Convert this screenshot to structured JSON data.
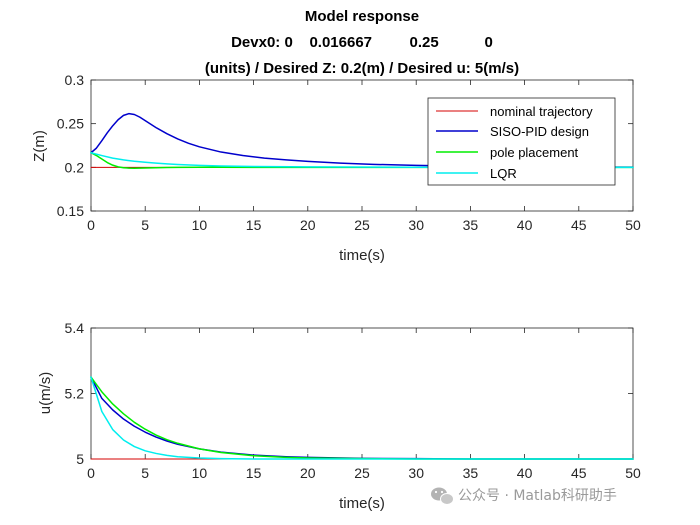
{
  "figure": {
    "title_lines": [
      "Model response",
      "Devx0: 0    0.016667         0.25           0",
      "(units) / Desired Z: 0.2(m) / Desired u: 5(m/s)"
    ]
  },
  "watermark": {
    "text": "公众号 · Matlab科研助手",
    "icon": "wechat-icon"
  },
  "colors": {
    "nominal": "#d40000",
    "pid": "#0000cc",
    "pole": "#00ee00",
    "lqr": "#00eeee"
  },
  "chart_data": [
    {
      "type": "line",
      "xlabel": "time(s)",
      "ylabel": "Z(m)",
      "xlim": [
        0,
        50
      ],
      "ylim": [
        0.15,
        0.3
      ],
      "xticks": [
        0,
        5,
        10,
        15,
        20,
        25,
        30,
        35,
        40,
        45,
        50
      ],
      "yticks": [
        0.15,
        0.2,
        0.25,
        0.3
      ],
      "ytick_labels": [
        "0.15",
        "0.2",
        "0.25",
        "0.3"
      ],
      "grid": false,
      "legend": "top-right",
      "series": [
        {
          "name": "nominal trajectory",
          "color": "#d40000",
          "x": [
            0,
            50
          ],
          "y": [
            0.2,
            0.2
          ]
        },
        {
          "name": "SISO-PID design",
          "color": "#0000cc",
          "x": [
            0,
            0.5,
            1,
            1.5,
            2,
            2.5,
            3,
            3.5,
            4,
            4.5,
            5,
            6,
            7,
            8,
            9,
            10,
            12,
            14,
            16,
            18,
            20,
            23,
            26,
            30,
            35,
            40,
            45,
            50
          ],
          "y": [
            0.2167,
            0.222,
            0.2305,
            0.2395,
            0.2475,
            0.2545,
            0.2595,
            0.2615,
            0.2605,
            0.2575,
            0.2535,
            0.2455,
            0.2385,
            0.2325,
            0.2275,
            0.2235,
            0.2175,
            0.2135,
            0.2105,
            0.2085,
            0.2068,
            0.2048,
            0.2034,
            0.2022,
            0.2013,
            0.2008,
            0.2004,
            0.2002
          ]
        },
        {
          "name": "pole placement",
          "color": "#00ee00",
          "x": [
            0,
            0.5,
            1,
            1.5,
            2,
            2.5,
            3,
            3.5,
            4,
            5,
            6,
            7,
            8,
            10,
            12,
            15,
            20,
            30,
            40,
            50
          ],
          "y": [
            0.2167,
            0.2135,
            0.2095,
            0.2055,
            0.2025,
            0.2005,
            0.1995,
            0.1991,
            0.199,
            0.1992,
            0.1995,
            0.1998,
            0.2,
            0.2001,
            0.2001,
            0.2,
            0.2,
            0.2,
            0.2,
            0.2
          ]
        },
        {
          "name": "LQR",
          "color": "#00eeee",
          "x": [
            0,
            1,
            2,
            3,
            4,
            5,
            6,
            7,
            8,
            10,
            12,
            15,
            20,
            30,
            40,
            50
          ],
          "y": [
            0.2167,
            0.2135,
            0.2105,
            0.2085,
            0.207,
            0.2058,
            0.2048,
            0.204,
            0.2033,
            0.2023,
            0.2016,
            0.201,
            0.2005,
            0.2001,
            0.2,
            0.2
          ]
        }
      ]
    },
    {
      "type": "line",
      "xlabel": "time(s)",
      "ylabel": "u(m/s)",
      "xlim": [
        0,
        50
      ],
      "ylim": [
        5,
        5.4
      ],
      "xticks": [
        0,
        5,
        10,
        15,
        20,
        25,
        30,
        35,
        40,
        45,
        50
      ],
      "yticks": [
        5,
        5.2,
        5.4
      ],
      "ytick_labels": [
        "5",
        "5.2",
        "5.4"
      ],
      "grid": false,
      "series": [
        {
          "name": "nominal trajectory",
          "color": "#d40000",
          "x": [
            0,
            50
          ],
          "y": [
            5,
            5
          ]
        },
        {
          "name": "SISO-PID design",
          "color": "#0000cc",
          "x": [
            0,
            1,
            2,
            3,
            4,
            5,
            6,
            7,
            8,
            10,
            12,
            15,
            18,
            20,
            25,
            30,
            35,
            40,
            50
          ],
          "y": [
            5.25,
            5.185,
            5.15,
            5.122,
            5.1,
            5.082,
            5.067,
            5.055,
            5.045,
            5.031,
            5.021,
            5.012,
            5.007,
            5.005,
            5.002,
            5.001,
            5.0,
            5.0,
            5.0
          ]
        },
        {
          "name": "pole placement",
          "color": "#00ee00",
          "x": [
            0,
            1,
            2,
            3,
            4,
            5,
            6,
            7,
            8,
            10,
            12,
            15,
            18,
            20,
            25,
            30,
            35,
            40,
            50
          ],
          "y": [
            5.25,
            5.205,
            5.168,
            5.138,
            5.112,
            5.091,
            5.073,
            5.059,
            5.048,
            5.031,
            5.02,
            5.01,
            5.005,
            5.003,
            5.001,
            5.0,
            5.0,
            5.0,
            5.0
          ]
        },
        {
          "name": "LQR",
          "color": "#00eeee",
          "x": [
            0,
            1,
            2,
            3,
            4,
            5,
            6,
            7,
            8,
            10,
            12,
            15,
            20,
            30,
            40,
            50
          ],
          "y": [
            5.25,
            5.145,
            5.09,
            5.058,
            5.038,
            5.025,
            5.017,
            5.011,
            5.007,
            5.003,
            5.001,
            5.0,
            5.0,
            5.0,
            5.0,
            5.0
          ]
        }
      ]
    }
  ]
}
